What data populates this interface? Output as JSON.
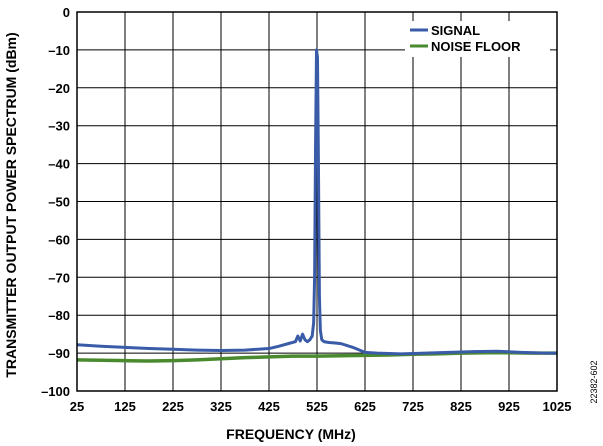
{
  "figure_id": "22382-602",
  "chart_data": {
    "type": "line",
    "title": "",
    "xlabel": "FREQUENCY (MHz)",
    "ylabel": "TRANSMITTER OUTPUT POWER SPECTRUM (dBm)",
    "xlim": [
      25,
      1025
    ],
    "ylim": [
      -100,
      0
    ],
    "x_ticks": [
      "25",
      "125",
      "225",
      "325",
      "425",
      "525",
      "625",
      "725",
      "825",
      "925",
      "1025"
    ],
    "y_ticks": [
      "0",
      "–10",
      "–20",
      "–30",
      "–40",
      "–50",
      "–60",
      "–70",
      "–80",
      "–90",
      "–100"
    ],
    "grid": true,
    "legend_position": "top-right",
    "series": [
      {
        "name": "SIGNAL",
        "color": "#3a5ca8",
        "x": [
          25,
          75,
          125,
          175,
          225,
          275,
          325,
          375,
          425,
          445,
          465,
          480,
          485,
          490,
          495,
          500,
          505,
          510,
          515,
          518,
          520,
          522,
          524,
          526,
          528,
          530,
          532,
          535,
          540,
          550,
          560,
          575,
          600,
          625,
          650,
          700,
          750,
          800,
          850,
          900,
          950,
          1000,
          1025
        ],
        "y": [
          -87.8,
          -88.2,
          -88.5,
          -88.8,
          -89,
          -89.2,
          -89.3,
          -89.2,
          -88.8,
          -88.2,
          -87.5,
          -87,
          -85.5,
          -86.8,
          -85,
          -86.5,
          -87,
          -86.5,
          -85.5,
          -82,
          -70,
          -35,
          -10,
          -12,
          -40,
          -75,
          -84,
          -86.5,
          -87,
          -87.2,
          -87.3,
          -87.5,
          -88.5,
          -89.8,
          -90,
          -90.2,
          -90,
          -89.8,
          -89.6,
          -89.5,
          -89.8,
          -90,
          -90
        ]
      },
      {
        "name": "NOISE FLOOR",
        "color": "#4a8a2e",
        "x": [
          25,
          75,
          125,
          175,
          225,
          275,
          325,
          375,
          425,
          475,
          525,
          575,
          625,
          675,
          725,
          775,
          825,
          875,
          925,
          975,
          1025
        ],
        "y": [
          -91.8,
          -91.9,
          -92,
          -92.1,
          -92,
          -91.8,
          -91.5,
          -91.2,
          -91,
          -90.8,
          -90.8,
          -90.7,
          -90.6,
          -90.5,
          -90.3,
          -90.2,
          -90,
          -89.9,
          -89.9,
          -90,
          -90
        ]
      }
    ]
  }
}
